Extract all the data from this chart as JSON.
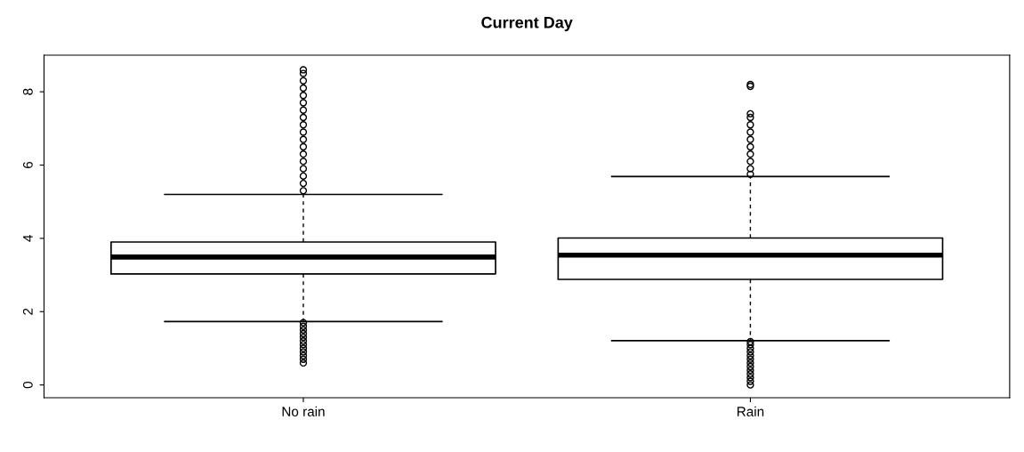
{
  "chart_data": {
    "type": "box",
    "title": "Current Day",
    "categories": [
      "No rain",
      "Rain"
    ],
    "boxes": [
      {
        "low": 1.73,
        "q1": 3.03,
        "median": 3.49,
        "q3": 3.9,
        "high": 5.2,
        "outliers": [
          0.6,
          0.7,
          0.8,
          0.9,
          1.0,
          1.1,
          1.2,
          1.3,
          1.4,
          1.5,
          1.6,
          1.7,
          5.3,
          5.5,
          5.7,
          5.9,
          6.1,
          6.3,
          6.5,
          6.7,
          6.9,
          7.1,
          7.3,
          7.5,
          7.7,
          7.9,
          8.1,
          8.3,
          8.5,
          8.6
        ]
      },
      {
        "low": 1.21,
        "q1": 2.88,
        "median": 3.54,
        "q3": 4.01,
        "high": 5.69,
        "outliers": [
          0.0,
          0.1,
          0.2,
          0.3,
          0.4,
          0.5,
          0.6,
          0.7,
          0.8,
          0.9,
          1.0,
          1.1,
          1.18,
          5.75,
          5.9,
          6.1,
          6.3,
          6.5,
          6.7,
          6.9,
          7.1,
          7.3,
          7.4,
          8.15,
          8.2
        ]
      }
    ],
    "ylim": [
      -0.35,
      9.0
    ],
    "yticks": [
      0,
      2,
      4,
      6,
      8
    ],
    "grid": false,
    "legend": false
  }
}
